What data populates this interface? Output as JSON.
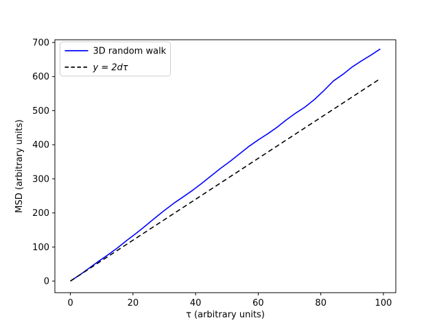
{
  "colors": {
    "background": "#ffffff",
    "frame": "#000000",
    "walk_line": "#0000ff",
    "theory_line": "#000000",
    "legend_border": "#cccccc",
    "text": "#000000"
  },
  "chart_data": {
    "type": "line",
    "title": "",
    "xlabel": "τ (arbitrary units)",
    "ylabel": "MSD (arbitrary units)",
    "xlim": [
      -4.95,
      103.95
    ],
    "ylim": [
      -34,
      708
    ],
    "xticks": [
      0,
      20,
      40,
      60,
      80,
      100
    ],
    "yticks": [
      0,
      100,
      200,
      300,
      400,
      500,
      600,
      700
    ],
    "grid": false,
    "legend_position": "upper left",
    "series": [
      {
        "name": "3D random walk",
        "color": "#0000ff",
        "style": "solid",
        "italic": false,
        "x": [
          0,
          3,
          6,
          9,
          12,
          15,
          18,
          21,
          24,
          27,
          30,
          33,
          36,
          39,
          42,
          45,
          48,
          51,
          54,
          57,
          60,
          63,
          66,
          69,
          72,
          75,
          78,
          81,
          84,
          87,
          90,
          93,
          96,
          99
        ],
        "y": [
          0,
          18,
          38,
          58,
          77,
          97,
          119,
          140,
          162,
          185,
          207,
          228,
          247,
          266,
          287,
          309,
          331,
          351,
          373,
          395,
          414,
          432,
          451,
          473,
          493,
          511,
          533,
          559,
          587,
          606,
          628,
          646,
          663,
          681
        ]
      },
      {
        "name": "y = 2dτ",
        "color": "#000000",
        "style": "dashed",
        "italic": true,
        "x": [
          0,
          99
        ],
        "y": [
          0,
          594
        ]
      }
    ]
  }
}
